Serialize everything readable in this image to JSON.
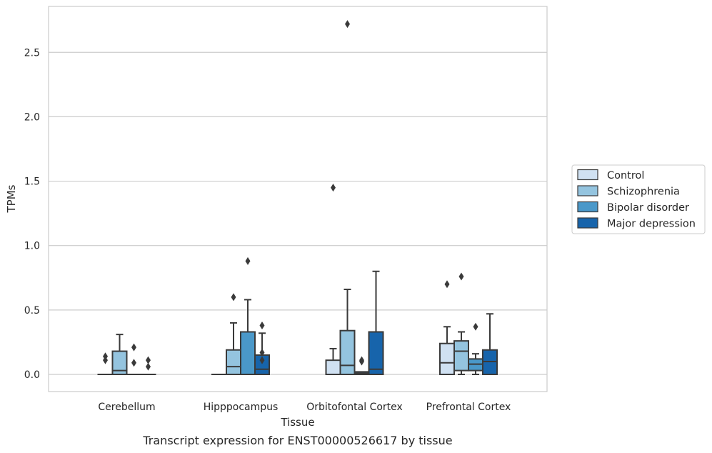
{
  "chart_data": {
    "type": "box",
    "caption": "Transcript expression for ENST00000526617 by tissue",
    "xlabel": "Tissue",
    "ylabel": "TPMs",
    "ylim": [
      -0.13,
      2.87
    ],
    "yticks": [
      0.0,
      0.5,
      1.0,
      1.5,
      2.0,
      2.5
    ],
    "ytick_labels": [
      "0.0",
      "0.5",
      "1.0",
      "1.5",
      "2.0",
      "2.5"
    ],
    "grid": "horizontal",
    "legend_position": "right",
    "categories": [
      "Cerebellum",
      "Hipppocampus",
      "Orbitofontal Cortex",
      "Prefrontal Cortex"
    ],
    "series": [
      {
        "name": "Control",
        "color": "#d0e1f2",
        "boxes": [
          {
            "q1": 0.0,
            "median": 0.0,
            "q3": 0.0,
            "whisker_low": 0.0,
            "whisker_high": 0.0,
            "outliers": [
              0.11,
              0.14
            ]
          },
          {
            "q1": 0.0,
            "median": 0.0,
            "q3": 0.0,
            "whisker_low": 0.0,
            "whisker_high": 0.0,
            "outliers": []
          },
          {
            "q1": 0.0,
            "median": 0.0,
            "q3": 0.11,
            "whisker_low": 0.0,
            "whisker_high": 0.2,
            "outliers": [
              1.45
            ]
          },
          {
            "q1": 0.0,
            "median": 0.09,
            "q3": 0.24,
            "whisker_low": 0.0,
            "whisker_high": 0.37,
            "outliers": [
              0.7
            ]
          }
        ]
      },
      {
        "name": "Schizophrenia",
        "color": "#94c4df",
        "boxes": [
          {
            "q1": 0.0,
            "median": 0.03,
            "q3": 0.18,
            "whisker_low": 0.0,
            "whisker_high": 0.31,
            "outliers": []
          },
          {
            "q1": 0.0,
            "median": 0.06,
            "q3": 0.19,
            "whisker_low": 0.0,
            "whisker_high": 0.4,
            "outliers": [
              0.6
            ]
          },
          {
            "q1": 0.0,
            "median": 0.07,
            "q3": 0.34,
            "whisker_low": 0.0,
            "whisker_high": 0.66,
            "outliers": [
              2.72
            ]
          },
          {
            "q1": 0.03,
            "median": 0.18,
            "q3": 0.26,
            "whisker_low": 0.0,
            "whisker_high": 0.33,
            "outliers": [
              0.76
            ]
          }
        ]
      },
      {
        "name": "Bipolar disorder",
        "color": "#4a98c9",
        "boxes": [
          {
            "q1": 0.0,
            "median": 0.0,
            "q3": 0.0,
            "whisker_low": 0.0,
            "whisker_high": 0.0,
            "outliers": [
              0.09,
              0.21
            ]
          },
          {
            "q1": 0.0,
            "median": 0.0,
            "q3": 0.33,
            "whisker_low": 0.0,
            "whisker_high": 0.58,
            "outliers": [
              0.88
            ]
          },
          {
            "q1": 0.0,
            "median": 0.01,
            "q3": 0.02,
            "whisker_low": 0.0,
            "whisker_high": 0.02,
            "outliers": [
              0.1,
              0.11
            ]
          },
          {
            "q1": 0.03,
            "median": 0.08,
            "q3": 0.12,
            "whisker_low": 0.0,
            "whisker_high": 0.16,
            "outliers": [
              0.37
            ]
          }
        ]
      },
      {
        "name": "Major depression",
        "color": "#1764ab",
        "boxes": [
          {
            "q1": 0.0,
            "median": 0.0,
            "q3": 0.0,
            "whisker_low": 0.0,
            "whisker_high": 0.0,
            "outliers": [
              0.06,
              0.11
            ]
          },
          {
            "q1": 0.0,
            "median": 0.04,
            "q3": 0.15,
            "whisker_low": 0.0,
            "whisker_high": 0.32,
            "outliers": [
              0.11,
              0.17,
              0.38
            ]
          },
          {
            "q1": 0.0,
            "median": 0.04,
            "q3": 0.33,
            "whisker_low": 0.0,
            "whisker_high": 0.8,
            "outliers": []
          },
          {
            "q1": 0.0,
            "median": 0.1,
            "q3": 0.19,
            "whisker_low": 0.0,
            "whisker_high": 0.47,
            "outliers": []
          }
        ]
      }
    ]
  }
}
